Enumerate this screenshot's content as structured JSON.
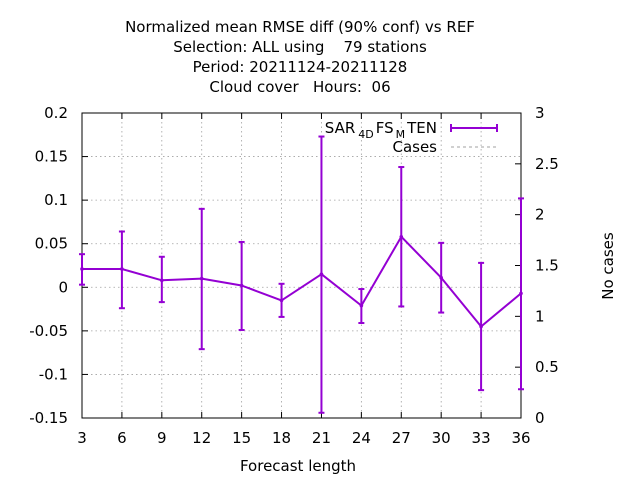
{
  "chart_data": {
    "type": "line",
    "title_lines": [
      "Normalized mean RMSE diff (90% conf) vs REF",
      "Selection: ALL using    79 stations",
      "Period: 20211124-20211128",
      "Cloud cover   Hours:  06"
    ],
    "xlabel": "Forecast length",
    "ylabel": "",
    "y2label": "No cases",
    "xlim": [
      3,
      36
    ],
    "ylim": [
      -0.15,
      0.2
    ],
    "y2lim": [
      0,
      3
    ],
    "xticks": [
      3,
      6,
      9,
      12,
      15,
      18,
      21,
      24,
      27,
      30,
      33,
      36
    ],
    "yticks": [
      0.2,
      0.15,
      0.1,
      0.05,
      0,
      -0.05,
      -0.1,
      -0.15
    ],
    "ytick_labels": [
      "0.2",
      "0.15",
      "0.1",
      "0.05",
      "0",
      "-0.05",
      "-0.1",
      "-0.15"
    ],
    "y2ticks": [
      3,
      2.5,
      2,
      1.5,
      1,
      0.5,
      0
    ],
    "y2tick_labels": [
      "3",
      "2.5",
      "2",
      "1.5",
      "1",
      "0.5",
      "0"
    ],
    "grid": true,
    "legend_position": "top-right",
    "series": [
      {
        "legend_parts": [
          "SAR",
          "4D",
          "FS",
          "M",
          "TEN"
        ],
        "color": "#9400d3",
        "x": [
          3,
          6,
          9,
          12,
          15,
          18,
          21,
          24,
          27,
          30,
          33,
          36
        ],
        "y": [
          0.021,
          0.021,
          0.008,
          0.01,
          0.002,
          -0.015,
          0.015,
          -0.021,
          0.058,
          0.011,
          -0.045,
          -0.007
        ],
        "err_low": [
          0.003,
          -0.024,
          -0.017,
          -0.071,
          -0.049,
          -0.034,
          -0.144,
          -0.041,
          -0.022,
          -0.029,
          -0.118,
          -0.117
        ],
        "err_high": [
          0.038,
          0.064,
          0.035,
          0.09,
          0.052,
          0.004,
          0.173,
          -0.002,
          0.138,
          0.051,
          0.028,
          0.102
        ]
      },
      {
        "name": "Cases",
        "color": "#a0a0a0",
        "dashed": true,
        "axis": "y2",
        "x": [],
        "y": []
      }
    ]
  }
}
